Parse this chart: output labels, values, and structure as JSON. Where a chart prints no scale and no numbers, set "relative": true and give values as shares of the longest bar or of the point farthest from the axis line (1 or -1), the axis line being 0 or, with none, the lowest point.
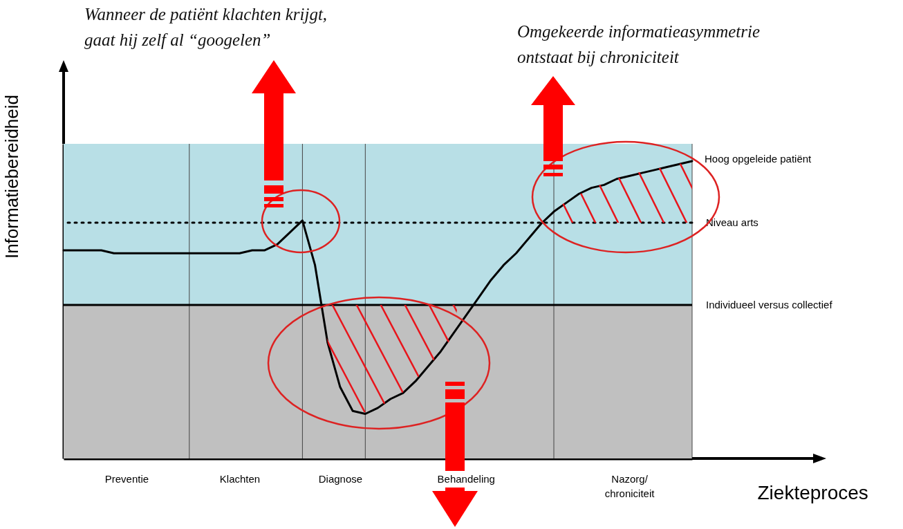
{
  "chart_data": {
    "type": "line",
    "relative": true,
    "xlabel": "Ziekteproces",
    "ylabel": "Informatiebereidheid",
    "categories": [
      null,
      null,
      null,
      null,
      null,
      "Preventie",
      null,
      null,
      null,
      null,
      null,
      null,
      null,
      null,
      "Klachten",
      null,
      null,
      null,
      null,
      null,
      null,
      null,
      "Diagnose",
      null,
      null,
      null,
      null,
      null,
      null,
      null,
      null,
      null,
      "Behandeling",
      null,
      null,
      null,
      null,
      null,
      null,
      null,
      null,
      null,
      null,
      null,
      null,
      "Nazorg/\nchroniciteit",
      null,
      null,
      null,
      null,
      null
    ],
    "series": [
      {
        "name": "Hoog opgeleide patiënt",
        "color": "#000000",
        "values": [
          0.7,
          0.7,
          0.7,
          0.7,
          0.69,
          0.69,
          0.69,
          0.69,
          0.69,
          0.69,
          0.69,
          0.69,
          0.69,
          0.69,
          0.69,
          0.7,
          0.7,
          0.72,
          0.76,
          0.8,
          0.65,
          0.39,
          0.24,
          0.16,
          0.15,
          0.17,
          0.2,
          0.22,
          0.26,
          0.31,
          0.36,
          0.42,
          0.48,
          0.54,
          0.6,
          0.65,
          0.69,
          0.74,
          0.79,
          0.83,
          0.86,
          0.89,
          0.91,
          0.92,
          0.94,
          0.95,
          0.96,
          0.97,
          0.98,
          0.99,
          1
        ]
      }
    ],
    "bands": [
      {
        "axis": "y",
        "from": 0,
        "to": 0.516,
        "color": "#c0c0c0"
      },
      {
        "axis": "y",
        "from": 0.516,
        "to": 1.058,
        "color": "#b8dfe6"
      }
    ],
    "ref_lines": [
      {
        "axis": "y",
        "value": 0.793,
        "label": "Niveau arts",
        "line_style": "dotted",
        "color": "#000000"
      },
      {
        "axis": "y",
        "value": 0.516,
        "label": "Individueel versus collectief",
        "line_style": "solid",
        "color": "#000000"
      }
    ],
    "grid": "x",
    "annotations": [
      "Wanneer de patiënt klachten krijgt,\ngaat hij zelf al “googelen”",
      "Omgekeerde informatieasymmetrie\nontstaat bij chroniciteit"
    ]
  }
}
